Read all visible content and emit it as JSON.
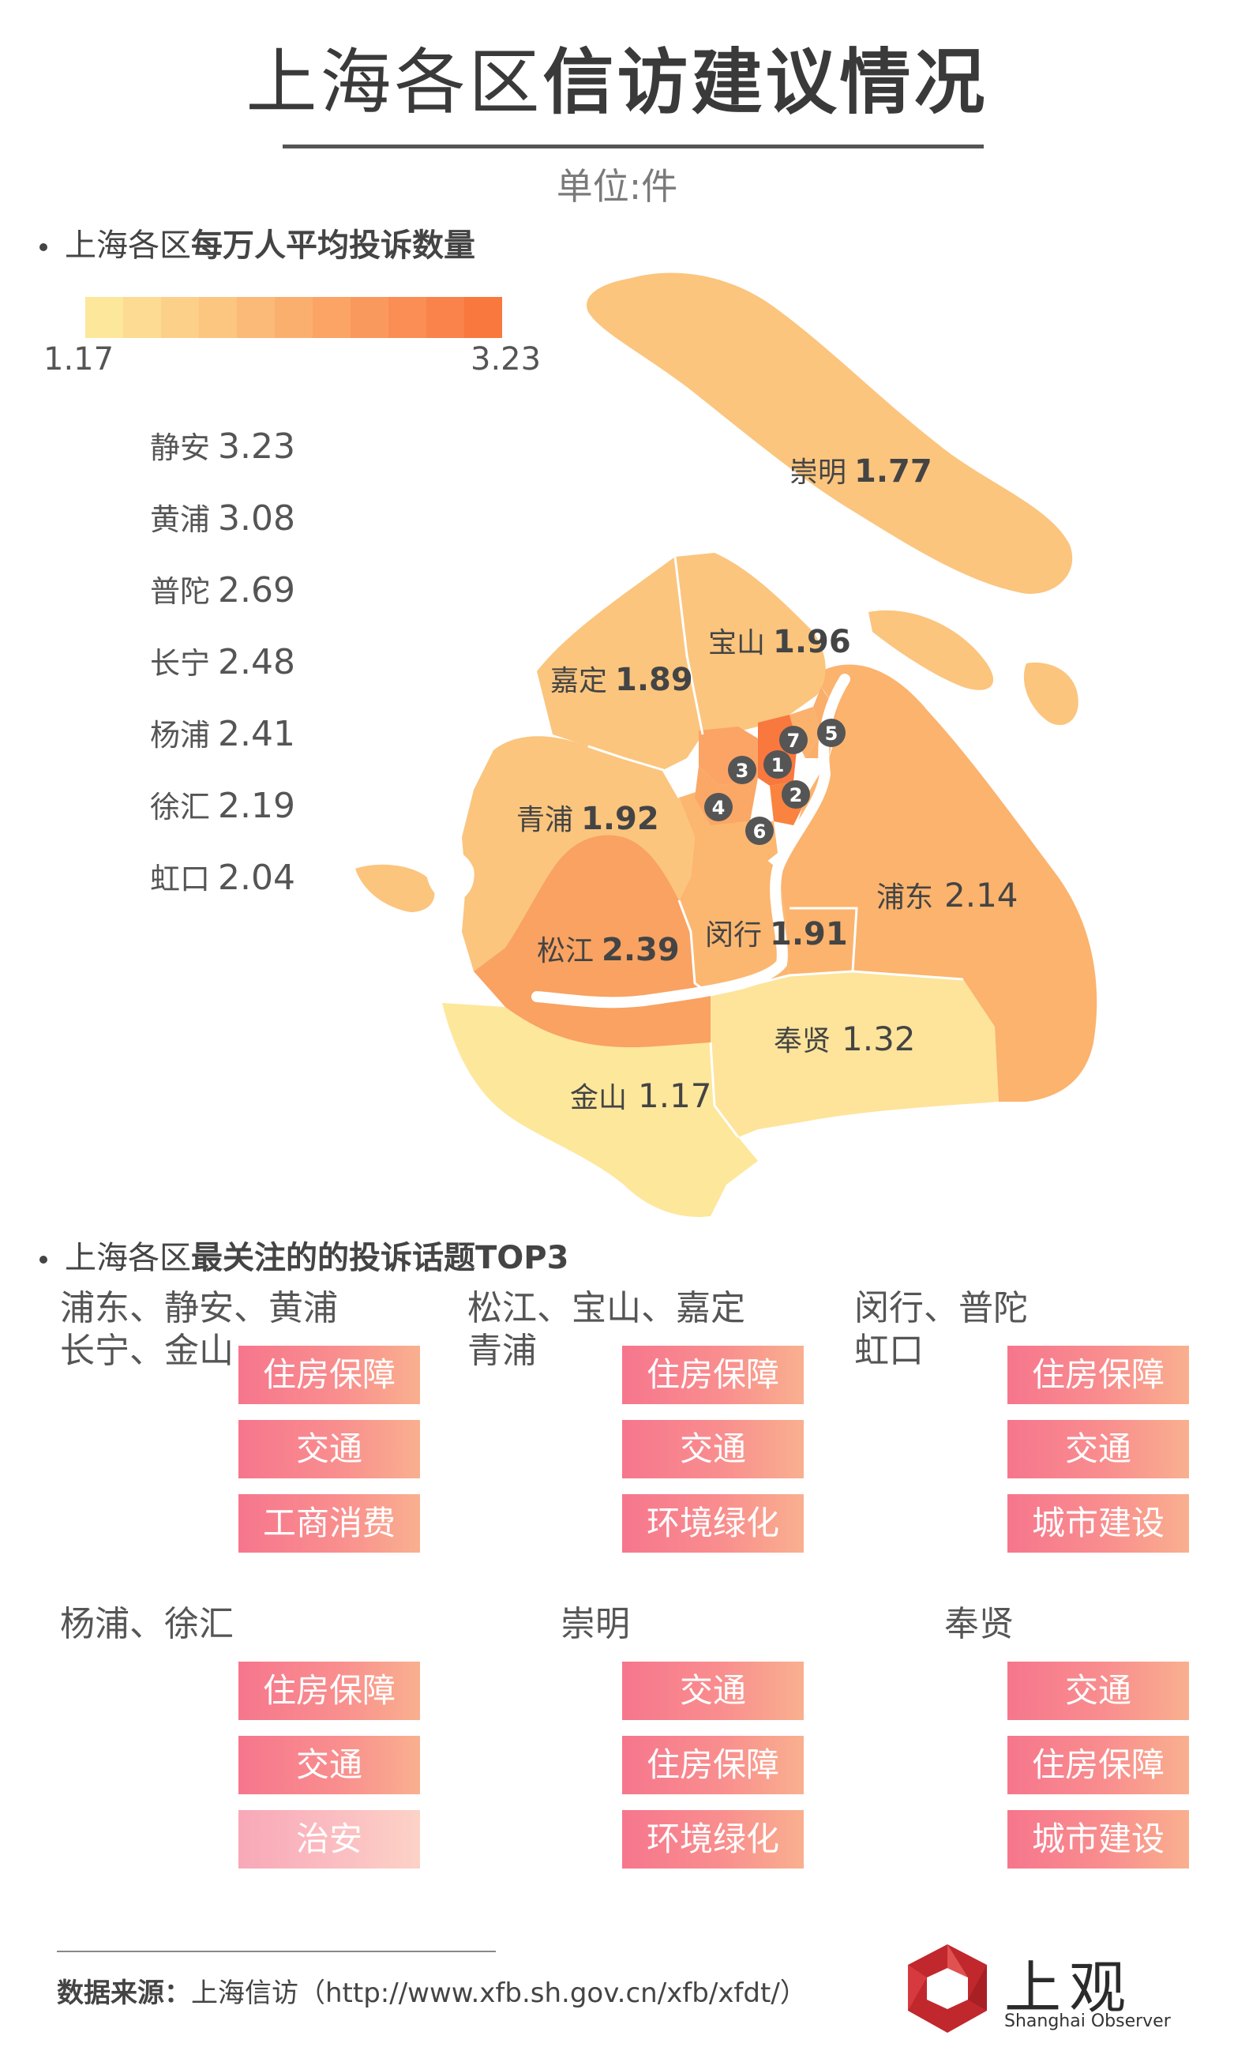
{
  "title": {
    "light": "上海各区",
    "bold": "信访建议情况"
  },
  "unit": "单位:件",
  "section1": {
    "light": "上海各区",
    "bold": "每万人平均投诉数量"
  },
  "legend": {
    "min": "1.17",
    "max": "3.23",
    "colors": [
      "#fde79b",
      "#fddb92",
      "#fcd089",
      "#fcc580",
      "#fbba77",
      "#fbaf6e",
      "#fba466",
      "#fa995d",
      "#fa8e54",
      "#f9834b",
      "#f9783e"
    ]
  },
  "ranking": [
    {
      "name": "静安",
      "value": "3.23"
    },
    {
      "name": "黄浦",
      "value": "3.08"
    },
    {
      "name": "普陀",
      "value": "2.69"
    },
    {
      "name": "长宁",
      "value": "2.48"
    },
    {
      "name": "杨浦",
      "value": "2.41"
    },
    {
      "name": "徐汇",
      "value": "2.19"
    },
    {
      "name": "虹口",
      "value": "2.04"
    }
  ],
  "map": {
    "labels": [
      {
        "name": "崇明",
        "value": "1.77"
      },
      {
        "name": "宝山",
        "value": "1.96"
      },
      {
        "name": "嘉定",
        "value": "1.89"
      },
      {
        "name": "青浦",
        "value": "1.92"
      },
      {
        "name": "浦东",
        "value": "2.14"
      },
      {
        "name": "闵行",
        "value": "1.91"
      },
      {
        "name": "松江",
        "value": "2.39"
      },
      {
        "name": "奉贤",
        "value": "1.32"
      },
      {
        "name": "金山",
        "value": "1.17"
      }
    ],
    "markers": [
      "1",
      "2",
      "3",
      "4",
      "5",
      "6",
      "7"
    ],
    "colors": {
      "land": "#fbc57e",
      "mid": "#fbb770",
      "pudong": "#fbb36d",
      "songjiang": "#f9a261",
      "low": "#fde49a",
      "core": "#f9833f",
      "marker": "#555555",
      "river": "#ffffff"
    }
  },
  "section2": {
    "light": "上海各区",
    "bold": "最关注的的投诉话题TOP3"
  },
  "groups": [
    {
      "title_line1": "浦东、静安、黄浦",
      "title_line2": "长宁、金山",
      "topics": [
        "住房保障",
        "交通",
        "工商消费"
      ]
    },
    {
      "title_line1": "松江、宝山、嘉定",
      "title_line2": "青浦",
      "topics": [
        "住房保障",
        "交通",
        "环境绿化"
      ]
    },
    {
      "title_line1": "闵行、普陀",
      "title_line2": "虹口",
      "topics": [
        "住房保障",
        "交通",
        "城市建设"
      ]
    },
    {
      "title_line1": "杨浦、徐汇",
      "title_line2": "",
      "topics": [
        "住房保障",
        "交通",
        "治安"
      ]
    },
    {
      "title_line1": "崇明",
      "title_line2": "",
      "topics": [
        "交通",
        "住房保障",
        "环境绿化"
      ]
    },
    {
      "title_line1": "奉贤",
      "title_line2": "",
      "topics": [
        "交通",
        "住房保障",
        "城市建设"
      ]
    }
  ],
  "source": {
    "label": "数据来源：",
    "text": "上海信访（http://www.xfb.sh.gov.cn/xfb/xfdt/）"
  },
  "logo": {
    "name": "上观",
    "sub": "Shanghai Observer",
    "color": "#c0282d"
  }
}
